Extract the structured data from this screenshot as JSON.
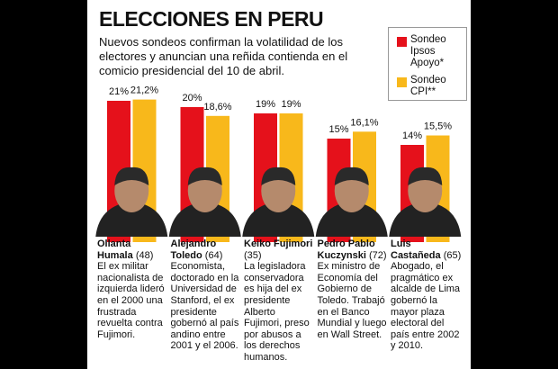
{
  "chart_data": {
    "type": "bar",
    "title": "ELECCIONES EN PERU",
    "subtitle": "Nuevos sondeos confirman la volatilidad de los electores y anuncian una reñida contienda en el comicio presidencial del 10 de abril.",
    "categories": [
      "Ollanta Humala",
      "Alejandro Toledo",
      "Keiko Fujimori",
      "Pedro Pablo Kuczynski",
      "Luis Castañeda"
    ],
    "ages": [
      "(48)",
      "(64)",
      "(35)",
      "(72)",
      "(65)"
    ],
    "descriptions": [
      "El ex militar nacionalista de izquierda lideró en el 2000 una frustrada revuelta contra Fujimori.",
      "Economista, doctorado en la Universidad de Stanford, el ex presidente gobernó al país andino entre 2001 y el 2006.",
      "La legisladora conservadora es hija del ex presidente Alberto Fujimori, preso por abusos a los derechos humanos.",
      "Ex ministro de Economía del Gobierno de Toledo. Trabajó en el Banco Mundial y luego en Wall Street.",
      "Abogado, el pragmático ex alcalde de Lima gobernó la mayor plaza electoral del país entre 2002 y 2010."
    ],
    "series": [
      {
        "name": "Sondeo Ipsos Apoyo*",
        "color": "#e5111b",
        "values": [
          21,
          20,
          19,
          15,
          14
        ],
        "value_labels": [
          "21%",
          "20%",
          "19%",
          "15%",
          "14%"
        ]
      },
      {
        "name": "Sondeo CPI**",
        "color": "#f8b81b",
        "values": [
          21.2,
          18.6,
          19,
          16.1,
          15.5
        ],
        "value_labels": [
          "21,2%",
          "18,6%",
          "19%",
          "16,1%",
          "15,5%"
        ]
      }
    ]
  }
}
